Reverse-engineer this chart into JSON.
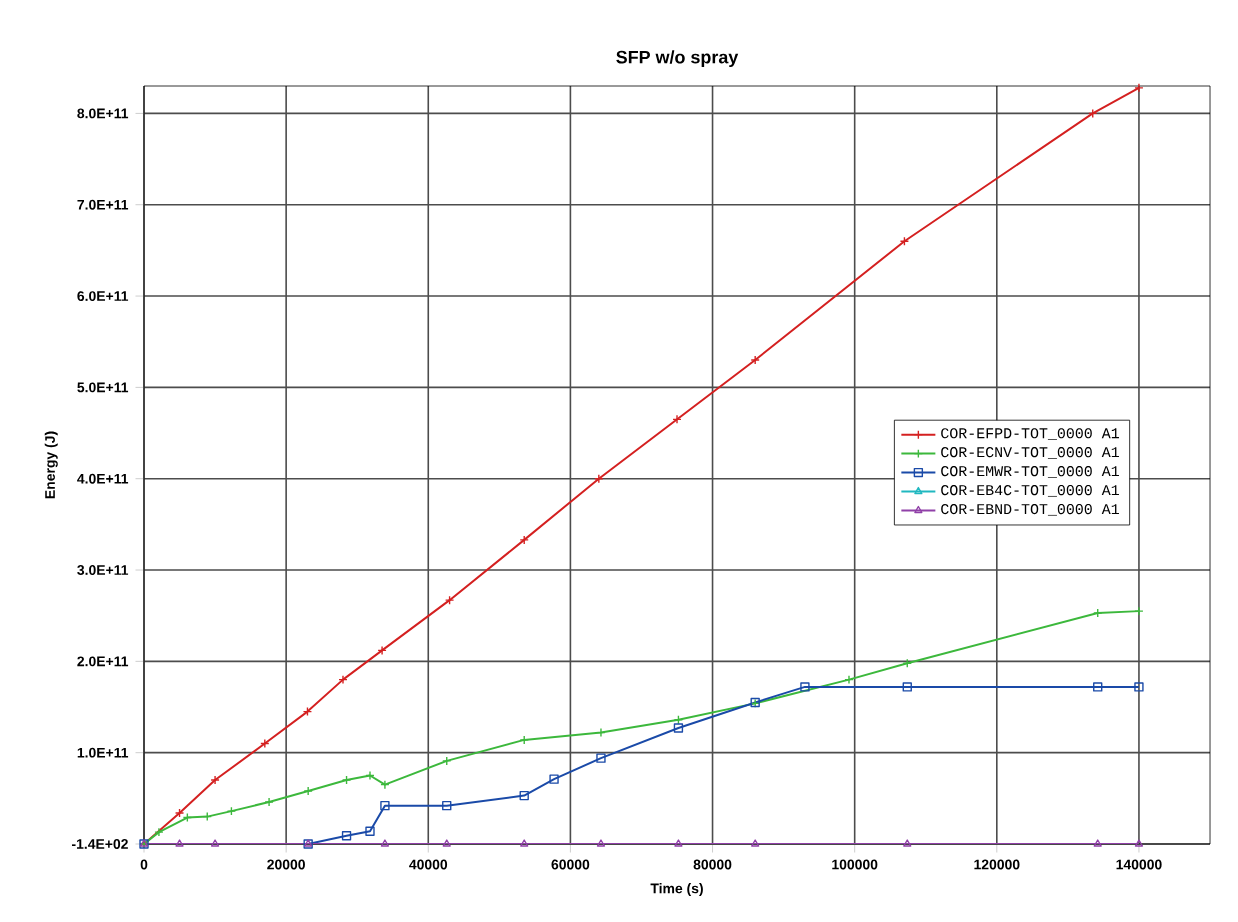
{
  "chart_data": {
    "type": "line",
    "title": "SFP w/o spray",
    "xlabel": "Time (s)",
    "ylabel": "Energy  (J)",
    "xlim": [
      0,
      150000
    ],
    "ylim": [
      -140,
      830000000000.0
    ],
    "xticks": [
      0,
      20000,
      40000,
      60000,
      80000,
      100000,
      120000,
      140000
    ],
    "yticks": [
      {
        "value": -140,
        "label": "-1.4E+02"
      },
      {
        "value": 100000000000.0,
        "label": "1.0E+11"
      },
      {
        "value": 200000000000.0,
        "label": "2.0E+11"
      },
      {
        "value": 300000000000.0,
        "label": "3.0E+11"
      },
      {
        "value": 400000000000.0,
        "label": "4.0E+11"
      },
      {
        "value": 500000000000.0,
        "label": "5.0E+11"
      },
      {
        "value": 600000000000.0,
        "label": "6.0E+11"
      },
      {
        "value": 700000000000.0,
        "label": "7.0E+11"
      },
      {
        "value": 800000000000.0,
        "label": "8.0E+11"
      }
    ],
    "grid": true,
    "legend": "right",
    "series": [
      {
        "name": "COR-EFPD-TOT_0000 A1",
        "color": "#d42020",
        "marker": "cross",
        "x": [
          0,
          5000,
          10000,
          17000,
          23000,
          28000,
          33500,
          43000,
          53500,
          64000,
          75000,
          86000,
          107000,
          133500,
          140000
        ],
        "values": [
          0,
          34000000000.0,
          70000000000.0,
          110000000000.0,
          145000000000.0,
          180000000000.0,
          212000000000.0,
          267000000000.0,
          333000000000.0,
          400000000000.0,
          465000000000.0,
          530000000000.0,
          660000000000.0,
          800000000000.0,
          828000000000.0
        ]
      },
      {
        "name": "COR-ECNV-TOT_0000 A1",
        "color": "#3cb83c",
        "marker": "cross",
        "x": [
          0,
          2100,
          6100,
          8900,
          12300,
          17600,
          23100,
          28500,
          31800,
          33900,
          42600,
          53500,
          64300,
          75200,
          86000,
          99200,
          107400,
          134200,
          140000
        ],
        "values": [
          0,
          13000000000.0,
          29000000000.0,
          30000000000.0,
          36000000000.0,
          46000000000.0,
          58000000000.0,
          70000000000.0,
          75000000000.0,
          65000000000.0,
          91000000000.0,
          114000000000.0,
          122000000000.0,
          136000000000.0,
          154000000000.0,
          180000000000.0,
          198000000000.0,
          253000000000.0,
          255000000000.0
        ]
      },
      {
        "name": "COR-EMWR-TOT_0000 A1",
        "color": "#1a4aa8",
        "marker": "square",
        "x": [
          0,
          23100,
          28500,
          31800,
          33900,
          42600,
          53500,
          57700,
          64300,
          75200,
          86000,
          93000,
          107400,
          134200,
          140000
        ],
        "values": [
          0,
          0,
          9000000000.0,
          14000000000.0,
          42000000000.0,
          42000000000.0,
          53000000000.0,
          71000000000.0,
          94000000000.0,
          127000000000.0,
          155000000000.0,
          172000000000.0,
          172000000000.0,
          172000000000.0,
          172000000000.0
        ]
      },
      {
        "name": "COR-EB4C-TOT_0000 A1",
        "color": "#20b8c0",
        "marker": "triangle"
      },
      {
        "name": "COR-EBND-TOT_0000 A1",
        "color": "#9040a8",
        "marker": "triangle",
        "x": [
          0,
          5000,
          10000,
          23100,
          33900,
          42600,
          53500,
          64300,
          75200,
          86000,
          107400,
          134200,
          140000
        ],
        "values": [
          0,
          0,
          0,
          0,
          0,
          0,
          0,
          0,
          0,
          0,
          0,
          0,
          0
        ]
      }
    ]
  }
}
